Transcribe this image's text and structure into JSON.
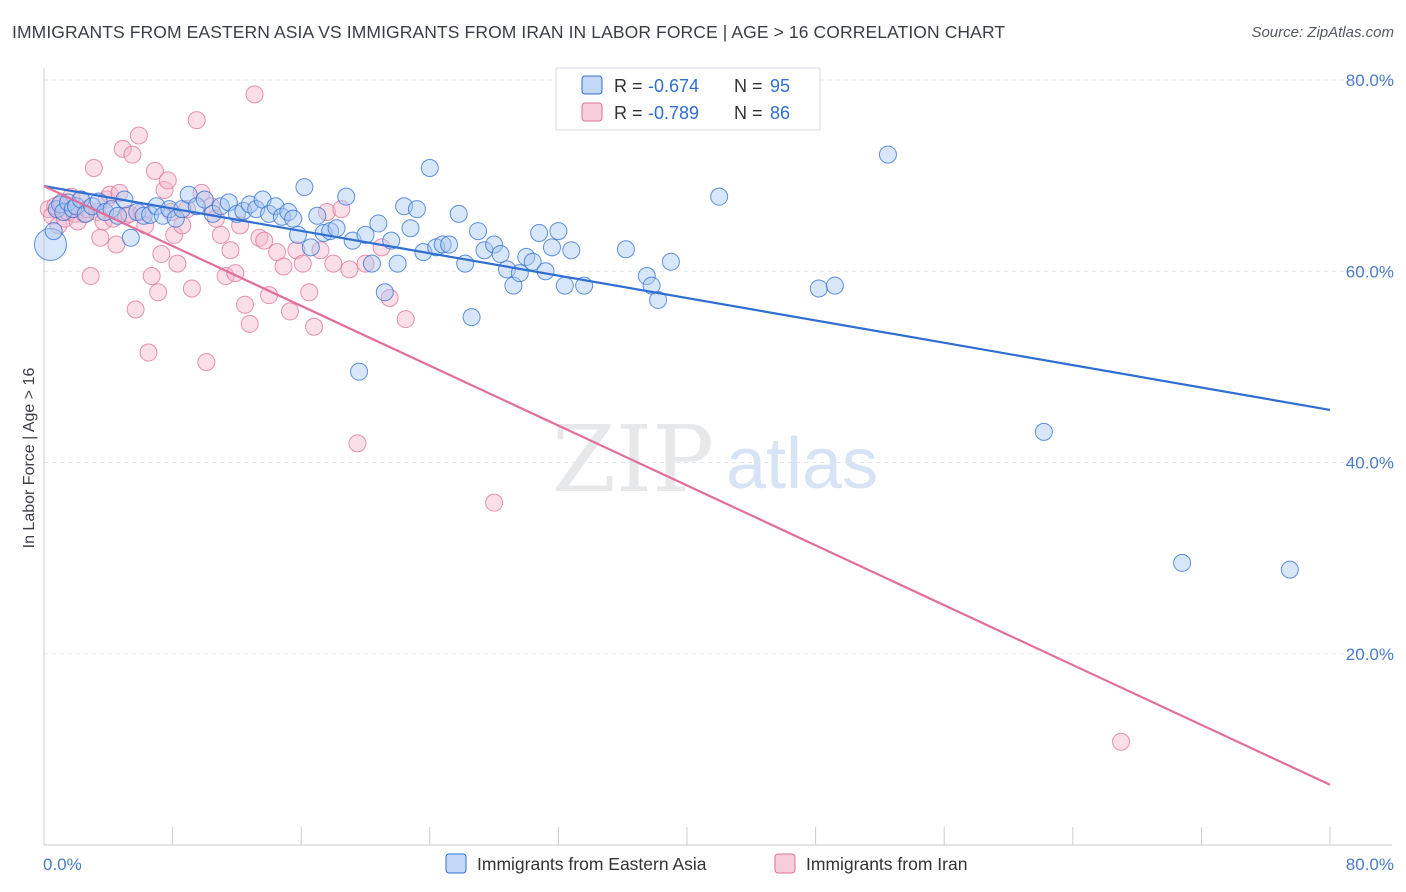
{
  "header": {
    "title": "IMMIGRANTS FROM EASTERN ASIA VS IMMIGRANTS FROM IRAN IN LABOR FORCE | AGE > 16 CORRELATION CHART",
    "source": "Source: ZipAtlas.com"
  },
  "watermark": {
    "zip": "ZIP",
    "atlas": "atlas"
  },
  "colors": {
    "blue": "#2f6fd1",
    "blue_fill": "#a8c8f2",
    "pink": "#e0709a",
    "pink_fill": "#f5b8cc",
    "grid": "#e3e6ea",
    "tick_text": "#4a7cc9"
  },
  "chart_data": {
    "type": "scatter",
    "title": "IMMIGRANTS FROM EASTERN ASIA VS IMMIGRANTS FROM IRAN IN LABOR FORCE | AGE > 16 CORRELATION CHART",
    "xlabel": "",
    "ylabel": "In Labor Force | Age > 16",
    "xlim": [
      0,
      80
    ],
    "ylim": [
      0,
      80
    ],
    "x_tick_labels": [
      "0.0%",
      "80.0%"
    ],
    "y_ticks": [
      {
        "value": 20,
        "label": "20.0%"
      },
      {
        "value": 40,
        "label": "40.0%"
      },
      {
        "value": 60,
        "label": "60.0%"
      },
      {
        "value": 80,
        "label": "80.0%"
      }
    ],
    "grid": "horizontal dashed",
    "legend_position": "top-center",
    "series": [
      {
        "name": "Immigrants from Eastern Asia",
        "color": "#2f6fd1",
        "R": "-0.674",
        "N": "95",
        "trend": {
          "x0": 0,
          "y0": 68.9,
          "x1": 80,
          "y1": 45.5
        },
        "points": [
          [
            0.4,
            62.8
          ],
          [
            0.6,
            64.2
          ],
          [
            0.8,
            66.5
          ],
          [
            1.0,
            67.0
          ],
          [
            1.2,
            66.2
          ],
          [
            1.5,
            67.2
          ],
          [
            1.8,
            66.5
          ],
          [
            2.0,
            66.8
          ],
          [
            2.3,
            67.5
          ],
          [
            2.6,
            66.0
          ],
          [
            3.0,
            66.8
          ],
          [
            3.4,
            67.3
          ],
          [
            3.8,
            66.2
          ],
          [
            4.2,
            66.5
          ],
          [
            4.6,
            65.8
          ],
          [
            5.0,
            67.5
          ],
          [
            5.4,
            63.5
          ],
          [
            5.8,
            66.2
          ],
          [
            6.2,
            65.8
          ],
          [
            6.6,
            65.9
          ],
          [
            7.0,
            66.8
          ],
          [
            7.4,
            65.8
          ],
          [
            7.8,
            66.5
          ],
          [
            8.2,
            65.5
          ],
          [
            8.6,
            66.5
          ],
          [
            9.0,
            68.0
          ],
          [
            9.5,
            66.8
          ],
          [
            10.0,
            67.5
          ],
          [
            10.5,
            66.0
          ],
          [
            11.0,
            66.8
          ],
          [
            11.5,
            67.2
          ],
          [
            12.0,
            66.0
          ],
          [
            12.4,
            66.3
          ],
          [
            12.8,
            67.0
          ],
          [
            13.2,
            66.5
          ],
          [
            13.6,
            67.5
          ],
          [
            14.0,
            66.0
          ],
          [
            14.4,
            66.8
          ],
          [
            14.8,
            65.7
          ],
          [
            15.2,
            66.2
          ],
          [
            15.5,
            65.5
          ],
          [
            15.8,
            63.8
          ],
          [
            16.2,
            68.8
          ],
          [
            16.6,
            62.5
          ],
          [
            17.0,
            65.8
          ],
          [
            17.4,
            64.0
          ],
          [
            17.8,
            64.2
          ],
          [
            18.2,
            64.5
          ],
          [
            18.8,
            67.8
          ],
          [
            19.2,
            63.2
          ],
          [
            19.6,
            49.5
          ],
          [
            20.0,
            63.8
          ],
          [
            20.4,
            60.8
          ],
          [
            20.8,
            65.0
          ],
          [
            21.2,
            57.8
          ],
          [
            21.6,
            63.2
          ],
          [
            22.0,
            60.8
          ],
          [
            22.4,
            66.8
          ],
          [
            22.8,
            64.5
          ],
          [
            23.2,
            66.5
          ],
          [
            23.6,
            62.0
          ],
          [
            24.0,
            70.8
          ],
          [
            24.4,
            62.5
          ],
          [
            24.8,
            62.8
          ],
          [
            25.2,
            62.8
          ],
          [
            25.8,
            66.0
          ],
          [
            26.2,
            60.8
          ],
          [
            26.6,
            55.2
          ],
          [
            27.0,
            64.2
          ],
          [
            27.4,
            62.2
          ],
          [
            28.0,
            62.8
          ],
          [
            28.4,
            61.8
          ],
          [
            28.8,
            60.2
          ],
          [
            29.2,
            58.5
          ],
          [
            29.6,
            59.8
          ],
          [
            30.0,
            61.5
          ],
          [
            30.4,
            61.0
          ],
          [
            30.8,
            64.0
          ],
          [
            31.2,
            60.0
          ],
          [
            31.6,
            62.5
          ],
          [
            32.0,
            64.2
          ],
          [
            32.4,
            58.5
          ],
          [
            32.8,
            62.2
          ],
          [
            33.6,
            58.5
          ],
          [
            36.2,
            62.3
          ],
          [
            37.5,
            59.5
          ],
          [
            37.8,
            58.5
          ],
          [
            38.2,
            57.0
          ],
          [
            39.0,
            61.0
          ],
          [
            42.0,
            67.8
          ],
          [
            48.2,
            58.2
          ],
          [
            49.2,
            58.5
          ],
          [
            52.5,
            72.2
          ],
          [
            62.2,
            43.2
          ],
          [
            70.8,
            29.5
          ],
          [
            77.5,
            28.8
          ]
        ]
      },
      {
        "name": "Immigrants from Iran",
        "color": "#e0709a",
        "R": "-0.789",
        "N": "86",
        "trend": {
          "x0": 0,
          "y0": 68.9,
          "x1": 80,
          "y1": 6.3
        },
        "points": [
          [
            0.3,
            66.5
          ],
          [
            0.5,
            65.8
          ],
          [
            0.7,
            66.8
          ],
          [
            0.9,
            64.8
          ],
          [
            1.1,
            67.2
          ],
          [
            1.3,
            65.5
          ],
          [
            1.5,
            66.2
          ],
          [
            1.7,
            67.8
          ],
          [
            1.9,
            66.0
          ],
          [
            2.1,
            65.2
          ],
          [
            2.3,
            67.5
          ],
          [
            2.5,
            66.0
          ],
          [
            2.7,
            66.5
          ],
          [
            2.9,
            59.5
          ],
          [
            3.1,
            70.8
          ],
          [
            3.3,
            66.2
          ],
          [
            3.5,
            63.5
          ],
          [
            3.7,
            65.2
          ],
          [
            3.9,
            67.5
          ],
          [
            4.1,
            68.0
          ],
          [
            4.3,
            65.5
          ],
          [
            4.5,
            62.8
          ],
          [
            4.7,
            68.2
          ],
          [
            4.9,
            72.8
          ],
          [
            5.1,
            65.8
          ],
          [
            5.3,
            66.0
          ],
          [
            5.5,
            72.2
          ],
          [
            5.7,
            56.0
          ],
          [
            5.9,
            74.2
          ],
          [
            6.1,
            66.2
          ],
          [
            6.3,
            64.8
          ],
          [
            6.5,
            51.5
          ],
          [
            6.7,
            59.5
          ],
          [
            6.9,
            70.5
          ],
          [
            7.1,
            57.8
          ],
          [
            7.3,
            61.8
          ],
          [
            7.5,
            68.5
          ],
          [
            7.7,
            69.5
          ],
          [
            7.9,
            66.2
          ],
          [
            8.1,
            63.8
          ],
          [
            8.3,
            60.8
          ],
          [
            8.6,
            64.8
          ],
          [
            8.9,
            66.5
          ],
          [
            9.2,
            58.2
          ],
          [
            9.5,
            75.8
          ],
          [
            9.8,
            68.2
          ],
          [
            10.1,
            50.5
          ],
          [
            10.4,
            66.8
          ],
          [
            10.7,
            65.5
          ],
          [
            11.0,
            63.8
          ],
          [
            11.3,
            59.5
          ],
          [
            11.6,
            62.2
          ],
          [
            11.9,
            59.8
          ],
          [
            12.2,
            64.8
          ],
          [
            12.5,
            56.5
          ],
          [
            12.8,
            54.5
          ],
          [
            13.1,
            78.5
          ],
          [
            13.4,
            63.5
          ],
          [
            13.7,
            63.2
          ],
          [
            14.0,
            57.5
          ],
          [
            14.5,
            62.0
          ],
          [
            14.9,
            60.5
          ],
          [
            15.3,
            55.8
          ],
          [
            15.7,
            62.2
          ],
          [
            16.1,
            60.8
          ],
          [
            16.5,
            57.8
          ],
          [
            16.8,
            54.2
          ],
          [
            17.2,
            62.2
          ],
          [
            17.6,
            66.2
          ],
          [
            18.0,
            60.8
          ],
          [
            18.5,
            66.5
          ],
          [
            19.0,
            60.2
          ],
          [
            19.5,
            42.0
          ],
          [
            20.0,
            60.8
          ],
          [
            21.0,
            62.5
          ],
          [
            21.5,
            57.2
          ],
          [
            22.5,
            55.0
          ],
          [
            28.0,
            35.8
          ],
          [
            67.0,
            10.8
          ]
        ]
      }
    ]
  },
  "legend_top": {
    "rows": [
      {
        "r_label": "R = ",
        "r_value": "-0.674",
        "n_label": "N = ",
        "n_value": "95"
      },
      {
        "r_label": "R = ",
        "r_value": "-0.789",
        "n_label": "N = ",
        "n_value": "86"
      }
    ]
  },
  "legend_bottom": [
    {
      "label": "Immigrants from Eastern Asia"
    },
    {
      "label": "Immigrants from Iran"
    }
  ]
}
